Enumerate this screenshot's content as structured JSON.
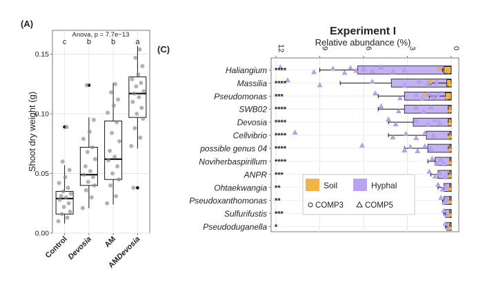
{
  "chart_data": [
    {
      "panel_label": "(A)",
      "type": "box",
      "annotation": "Anova, p = 7.7e−13",
      "ylabel": "Shoot dry weight (g)",
      "ylim": [
        0,
        0.17
      ],
      "yticks": [
        {
          "value": 0.0,
          "label": "0.00"
        },
        {
          "value": 0.05,
          "label": "0.05"
        },
        {
          "value": 0.1,
          "label": "0.10"
        },
        {
          "value": 0.15,
          "label": "0.15"
        }
      ],
      "grid": true,
      "groups": [
        {
          "category": "Control",
          "italic": false,
          "letter": "c",
          "min": 0.008,
          "q1": 0.016,
          "median": 0.029,
          "q3": 0.035,
          "max": 0.057,
          "outliers": [
            0.089
          ],
          "points": [
            0.01,
            0.013,
            0.016,
            0.018,
            0.022,
            0.025,
            0.028,
            0.03,
            0.031,
            0.033,
            0.035,
            0.038,
            0.042,
            0.047,
            0.053,
            0.06,
            0.089
          ]
        },
        {
          "category": "Devosia",
          "italic": true,
          "letter": "b",
          "min": 0.021,
          "q1": 0.04,
          "median": 0.049,
          "q3": 0.072,
          "max": 0.097,
          "outliers": [
            0.124
          ],
          "points": [
            0.021,
            0.03,
            0.036,
            0.04,
            0.043,
            0.047,
            0.049,
            0.052,
            0.056,
            0.062,
            0.068,
            0.072,
            0.079,
            0.085,
            0.095,
            0.124
          ]
        },
        {
          "category": "AM",
          "italic": false,
          "letter": "b",
          "min": 0.024,
          "q1": 0.045,
          "median": 0.062,
          "q3": 0.094,
          "max": 0.126,
          "outliers": [],
          "points": [
            0.025,
            0.031,
            0.04,
            0.045,
            0.05,
            0.056,
            0.061,
            0.064,
            0.069,
            0.077,
            0.084,
            0.093,
            0.101,
            0.107,
            0.112,
            0.118,
            0.125
          ]
        },
        {
          "category": "AMDevosia",
          "italic_part": "Devosia",
          "letter": "a",
          "min": 0.071,
          "q1": 0.097,
          "median": 0.117,
          "q3": 0.131,
          "max": 0.157,
          "outliers": [
            0.038
          ],
          "points": [
            0.073,
            0.08,
            0.088,
            0.096,
            0.1,
            0.105,
            0.11,
            0.114,
            0.117,
            0.119,
            0.123,
            0.126,
            0.129,
            0.133,
            0.14,
            0.147,
            0.154,
            0.038
          ]
        }
      ]
    },
    {
      "panel_label": "(C)",
      "type": "bar",
      "orientation": "horizontal",
      "x_reversed": true,
      "title": "Experiment I",
      "xlabel": "Relative abundance (%)",
      "xlim": [
        0,
        12
      ],
      "xticks": [
        {
          "value": 0,
          "label": "0"
        },
        {
          "value": 3,
          "label": "3"
        },
        {
          "value": 6,
          "label": "6"
        },
        {
          "value": 9,
          "label": "9"
        },
        {
          "value": 12,
          "label": "12"
        }
      ],
      "categories": [
        "Haliangium",
        "Massilia",
        "Pseudomonas",
        "SWB02",
        "Devosia",
        "Cellvibrio",
        "possible genus 04",
        "Noviherbaspirillum",
        "ANPR",
        "Ohtaekwangia",
        "Pseudoxanthomonas",
        "Sulfurifustis",
        "Pseudoduganella"
      ],
      "significance": [
        "****",
        "****",
        "***",
        "****",
        "****",
        "****",
        "****",
        "****",
        "***",
        "**",
        "**",
        "***",
        "*"
      ],
      "series": [
        {
          "name": "Soil",
          "color": "#f0b54a",
          "values": [
            0.5,
            0.3,
            0.4,
            0.2,
            0.2,
            0.1,
            0.1,
            0.1,
            0.1,
            0.1,
            0.1,
            0.1,
            0.1
          ],
          "errors": [
            0.6,
            1.4,
            1.5,
            0.2,
            0.2,
            0.2,
            0.2,
            0.1,
            0.2,
            0.1,
            0.1,
            0.1,
            0.1
          ],
          "points_comp3": [
            [
              0.2,
              0.8
            ],
            [
              0.1,
              1.4
            ],
            [
              0.3,
              1.8
            ],
            [
              0.1
            ],
            [
              0.1
            ],
            [
              0.1
            ],
            [
              0.1
            ],
            [
              0.1
            ],
            [
              0.1
            ],
            [
              0.1
            ],
            [
              0.1
            ],
            [
              0.1
            ],
            [
              0.1
            ]
          ]
        },
        {
          "name": "Hyphal",
          "color": "#b8a4f0",
          "values": [
            6.4,
            4.1,
            3.2,
            3.2,
            2.6,
            1.7,
            1.6,
            1.1,
            0.9,
            0.5,
            0.5,
            0.4,
            0.3
          ],
          "errors": [
            9.0,
            7.6,
            5.0,
            5.0,
            4.3,
            4.3,
            3.2,
            1.6,
            1.4,
            0.9,
            0.6,
            0.5,
            0.4
          ],
          "points_comp5": [
            [
              11.7,
              9.4,
              8.1,
              7.3,
              6.9,
              6.5,
              6.0,
              5.4,
              4.8,
              4.0,
              3.2
            ],
            [
              11.2,
              9.0,
              5.4,
              3.2,
              2.2,
              1.6,
              1.0
            ],
            [
              5.2,
              3.5,
              2.4,
              2.0,
              1.5,
              1.2,
              0.9
            ],
            [
              4.8,
              3.6,
              2.4,
              1.9,
              1.4
            ],
            [
              4.3,
              3.8,
              2.4,
              1.6,
              1.1,
              0.8
            ],
            [
              10.7,
              4.0,
              3.1,
              2.4,
              1.8,
              1.2
            ],
            [
              6.1,
              3.2,
              2.8,
              2.3,
              1.8,
              1.4
            ],
            [
              1.3,
              1.0,
              0.7,
              0.5
            ],
            [
              1.5,
              1.1,
              0.8,
              0.4
            ],
            [
              0.9,
              0.6,
              0.4
            ],
            [
              0.7,
              0.5,
              0.3
            ],
            [
              0.5,
              0.3
            ],
            [
              0.4,
              0.2
            ]
          ]
        }
      ],
      "legend": {
        "placement": "bottom-left",
        "fill_items": [
          {
            "label": "Soil",
            "color": "#f0b54a"
          },
          {
            "label": "Hyphal",
            "color": "#b8a4f0"
          }
        ],
        "shape_items": [
          {
            "label": "COMP3",
            "shape": "circle"
          },
          {
            "label": "COMP5",
            "shape": "triangle"
          }
        ]
      }
    }
  ]
}
